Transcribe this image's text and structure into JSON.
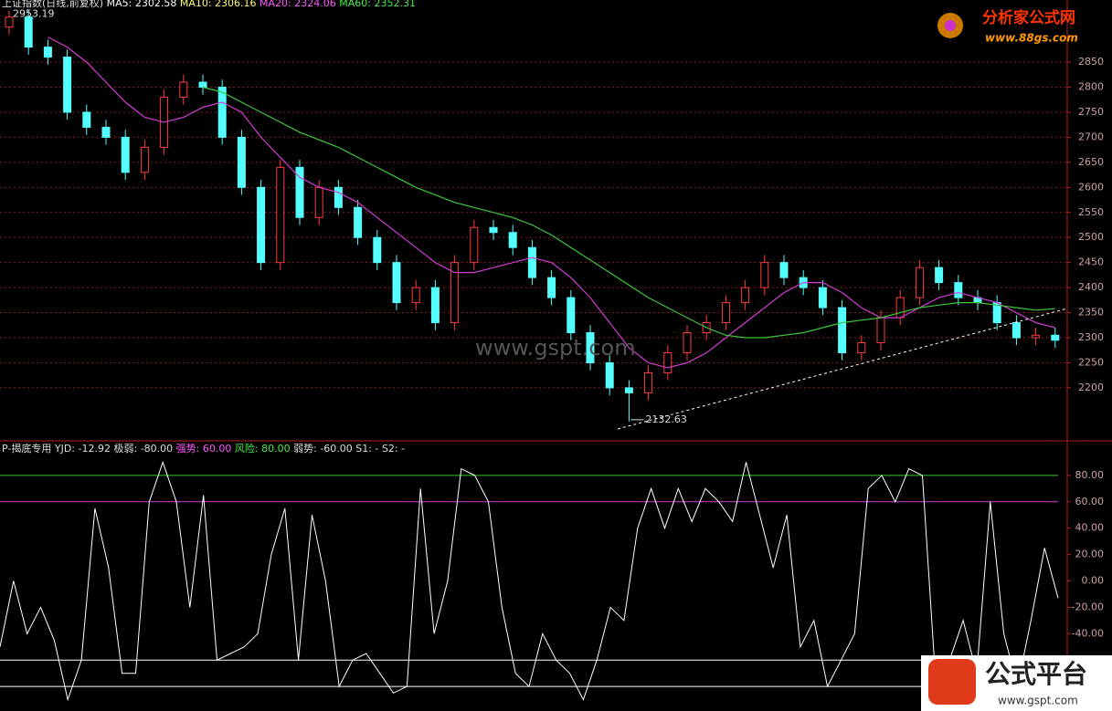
{
  "chart_data": [
    {
      "type": "candlestick",
      "title": "上证指数(日线,前复权)",
      "ma_labels": [
        {
          "name": "MA5:",
          "value": 2302.58,
          "color": "#ffffff"
        },
        {
          "name": "MA10:",
          "value": 2306.16,
          "color": "#ffff66"
        },
        {
          "name": "MA20:",
          "value": 2324.06,
          "color": "#ff55ff"
        },
        {
          "name": "MA60:",
          "value": 2352.31,
          "color": "#44ee44"
        }
      ],
      "open": [
        2920,
        2940,
        2880,
        2860,
        2750,
        2720,
        2700,
        2630,
        2680,
        2780,
        2810,
        2800,
        2700,
        2600,
        2450,
        2640,
        2540,
        2600,
        2560,
        2500,
        2450,
        2370,
        2400,
        2330,
        2450,
        2520,
        2510,
        2480,
        2420,
        2380,
        2310,
        2250,
        2200,
        2190,
        2230,
        2270,
        2310,
        2330,
        2370,
        2400,
        2450,
        2420,
        2400,
        2360,
        2270,
        2290,
        2340,
        2380,
        2440,
        2410,
        2380,
        2370,
        2330,
        2300,
        2305
      ],
      "high": [
        2953.19,
        2955,
        2895,
        2875,
        2765,
        2735,
        2715,
        2695,
        2795,
        2825,
        2825,
        2815,
        2715,
        2615,
        2655,
        2655,
        2615,
        2615,
        2575,
        2515,
        2465,
        2415,
        2415,
        2465,
        2535,
        2535,
        2525,
        2495,
        2435,
        2395,
        2325,
        2265,
        2215,
        2245,
        2285,
        2325,
        2345,
        2385,
        2415,
        2465,
        2465,
        2435,
        2415,
        2375,
        2305,
        2355,
        2395,
        2455,
        2455,
        2425,
        2395,
        2385,
        2345,
        2320,
        2320
      ],
      "low": [
        2905,
        2865,
        2845,
        2735,
        2705,
        2685,
        2615,
        2615,
        2665,
        2765,
        2785,
        2685,
        2585,
        2435,
        2435,
        2525,
        2525,
        2545,
        2485,
        2435,
        2355,
        2355,
        2315,
        2315,
        2435,
        2495,
        2465,
        2405,
        2365,
        2295,
        2235,
        2185,
        2132.63,
        2175,
        2215,
        2255,
        2295,
        2315,
        2355,
        2385,
        2405,
        2385,
        2345,
        2255,
        2255,
        2275,
        2325,
        2365,
        2395,
        2365,
        2355,
        2315,
        2285,
        2285,
        2280
      ],
      "close": [
        2940,
        2880,
        2860,
        2750,
        2720,
        2700,
        2630,
        2680,
        2780,
        2810,
        2800,
        2700,
        2600,
        2450,
        2640,
        2540,
        2600,
        2560,
        2500,
        2450,
        2370,
        2400,
        2330,
        2450,
        2520,
        2510,
        2480,
        2420,
        2380,
        2310,
        2250,
        2200,
        2190,
        2230,
        2270,
        2310,
        2330,
        2370,
        2400,
        2450,
        2420,
        2400,
        2360,
        2270,
        2290,
        2340,
        2380,
        2440,
        2410,
        2380,
        2370,
        2330,
        2300,
        2305,
        2295
      ],
      "up_color": "#ff3c3c",
      "down_color": "#54ffff",
      "series": [
        {
          "name": "MA20",
          "color": "#d23cd2",
          "values": [
            null,
            null,
            2900,
            2880,
            2850,
            2810,
            2770,
            2740,
            2730,
            2740,
            2760,
            2770,
            2750,
            2700,
            2660,
            2620,
            2600,
            2590,
            2570,
            2540,
            2510,
            2480,
            2450,
            2430,
            2430,
            2440,
            2450,
            2460,
            2450,
            2420,
            2380,
            2330,
            2280,
            2250,
            2240,
            2250,
            2270,
            2300,
            2330,
            2360,
            2390,
            2410,
            2410,
            2390,
            2360,
            2340,
            2340,
            2360,
            2380,
            2390,
            2380,
            2370,
            2350,
            2330,
            2320
          ]
        },
        {
          "name": "MA60",
          "color": "#3cc83c",
          "values": [
            null,
            null,
            null,
            null,
            null,
            null,
            null,
            null,
            null,
            null,
            2800,
            2790,
            2770,
            2750,
            2730,
            2710,
            2695,
            2680,
            2660,
            2640,
            2620,
            2600,
            2585,
            2570,
            2560,
            2550,
            2540,
            2525,
            2505,
            2480,
            2455,
            2430,
            2405,
            2380,
            2360,
            2340,
            2320,
            2305,
            2300,
            2300,
            2305,
            2310,
            2320,
            2330,
            2335,
            2340,
            2350,
            2360,
            2365,
            2370,
            2370,
            2365,
            2360,
            2355,
            2358
          ]
        }
      ],
      "annotations": [
        "2953.19",
        "2132.63"
      ],
      "ylim": [
        2096,
        2974
      ],
      "yticks": [
        2200,
        2250,
        2300,
        2350,
        2400,
        2450,
        2500,
        2550,
        2600,
        2650,
        2700,
        2750,
        2800,
        2850
      ],
      "grid": true
    },
    {
      "type": "line",
      "title": "P-揭底专用",
      "series": [
        {
          "name": "YJD:",
          "value_label": "-12.92",
          "color": "#ffffff",
          "values": [
            -50,
            0,
            -40,
            -20,
            -45,
            -90,
            -60,
            55,
            10,
            -70,
            -70,
            60,
            90,
            60,
            -20,
            65,
            -60,
            -55,
            -50,
            -40,
            20,
            55,
            -60,
            50,
            0,
            -80,
            -60,
            -55,
            -70,
            -85,
            -80,
            70,
            -40,
            0,
            85,
            80,
            60,
            -20,
            -70,
            -80,
            -40,
            -60,
            -70,
            -90,
            -60,
            -20,
            -30,
            40,
            70,
            40,
            70,
            45,
            70,
            60,
            45,
            90,
            50,
            10,
            50,
            -50,
            -30,
            -80,
            -60,
            -40,
            70,
            80,
            60,
            85,
            80,
            -80,
            -60,
            -30,
            -70,
            60,
            -40,
            -80,
            -30,
            25,
            -12.92
          ]
        }
      ],
      "levels": [
        {
          "name": "极弱:",
          "value": -80,
          "label": "-80.00",
          "color": "#ffffff"
        },
        {
          "name": "强势:",
          "value": 60,
          "label": "60.00",
          "color": "#d23cd2"
        },
        {
          "name": "风险:",
          "value": 80,
          "label": "80.00",
          "color": "#3cc83c"
        },
        {
          "name": "弱势:",
          "value": -60,
          "label": "-60.00",
          "color": "#ffffff"
        }
      ],
      "extras": [
        "S1: -",
        "S2: -"
      ],
      "ylim": [
        -98.6,
        105.5
      ],
      "yticks": [
        {
          "value": 80,
          "label": "80.00"
        },
        {
          "value": 60,
          "label": "60.00"
        },
        {
          "value": 40,
          "label": "40.00"
        },
        {
          "value": 20,
          "label": "20.00"
        },
        {
          "value": 0,
          "label": "0.00"
        },
        {
          "value": -20,
          "label": "-20.00"
        },
        {
          "value": -40,
          "label": "-40.00"
        }
      ]
    }
  ],
  "watermark": "www.gspt.com",
  "logo_top": {
    "title": "分析家公式网",
    "url": "www.88gs.com"
  },
  "logo_bottom": {
    "title": "公式平台",
    "url": "www.gspt.com"
  }
}
